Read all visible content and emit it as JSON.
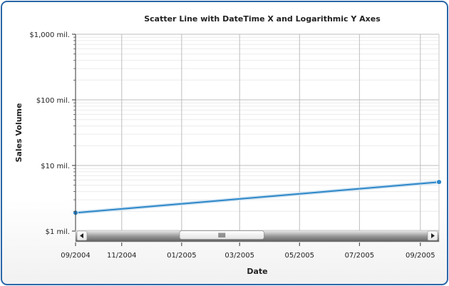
{
  "chart_data": {
    "type": "line",
    "title": "Scatter Line with DateTime X and Logarithmic Y Axes",
    "xlabel": "Date",
    "ylabel": "Sales Volume",
    "x_scale": "datetime",
    "y_scale": "log",
    "xlim": [
      "2004-09-15",
      "2005-09-20"
    ],
    "ylim": [
      1,
      1000
    ],
    "x_ticks": [
      {
        "date": "2004-09-15",
        "label": "09/2004"
      },
      {
        "date": "2004-11-01",
        "label": "11/2004"
      },
      {
        "date": "2005-01-01",
        "label": "01/2005"
      },
      {
        "date": "2005-03-01",
        "label": "03/2005"
      },
      {
        "date": "2005-05-01",
        "label": "05/2005"
      },
      {
        "date": "2005-07-01",
        "label": "07/2005"
      },
      {
        "date": "2005-09-01",
        "label": "09/2005"
      }
    ],
    "y_ticks": [
      {
        "value": 1,
        "label": "$1 mil."
      },
      {
        "value": 10,
        "label": "$10 mil."
      },
      {
        "value": 100,
        "label": "$100 mil."
      },
      {
        "value": 1000,
        "label": "$1,000 mil."
      }
    ],
    "grid": true,
    "legend": "none",
    "series": [
      {
        "color": "#2d87c8",
        "points": [
          {
            "x": "2004-09-15",
            "y": 1.9
          },
          {
            "x": "2005-09-20",
            "y": 5.6
          }
        ]
      }
    ],
    "scrollbar": {
      "thumb_start": 0.27,
      "thumb_end": 0.52
    }
  }
}
